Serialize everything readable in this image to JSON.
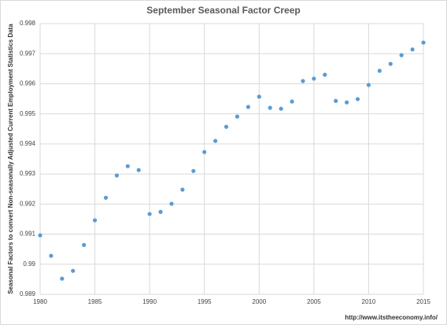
{
  "chart_data": {
    "type": "scatter",
    "title": "September Seasonal Factor Creep",
    "y_label": "Seasonal Factors to convert Non-seasonally Adjusted Current Employment Statistics Data",
    "source": "http://www.itstheeconomy.info/",
    "color": "#5b9bd5",
    "grid": true,
    "x": [
      1980,
      1981,
      1982,
      1983,
      1984,
      1985,
      1986,
      1987,
      1988,
      1989,
      1990,
      1991,
      1992,
      1993,
      1994,
      1995,
      1996,
      1997,
      1998,
      1999,
      2000,
      2001,
      2002,
      2003,
      2004,
      2005,
      2006,
      2007,
      2008,
      2009,
      2010,
      2011,
      2012,
      2013,
      2014,
      2015
    ],
    "values": [
      0.99096,
      0.99028,
      0.98952,
      0.98978,
      0.99064,
      0.99146,
      0.99221,
      0.99295,
      0.99326,
      0.99313,
      0.99167,
      0.99174,
      0.99201,
      0.99248,
      0.9931,
      0.99373,
      0.9941,
      0.99457,
      0.99491,
      0.99523,
      0.99557,
      0.9952,
      0.99517,
      0.99541,
      0.99609,
      0.99617,
      0.9963,
      0.99543,
      0.99538,
      0.99549,
      0.99596,
      0.99643,
      0.99666,
      0.99695,
      0.99714,
      0.99737
    ],
    "xlim": [
      1980,
      2015
    ],
    "xticks": [
      1980,
      1985,
      1990,
      1995,
      2000,
      2005,
      2010,
      2015
    ],
    "ylim": [
      0.989,
      0.998
    ],
    "yticks": [
      0.989,
      0.99,
      0.991,
      0.992,
      0.993,
      0.994,
      0.995,
      0.996,
      0.997,
      0.998
    ]
  }
}
